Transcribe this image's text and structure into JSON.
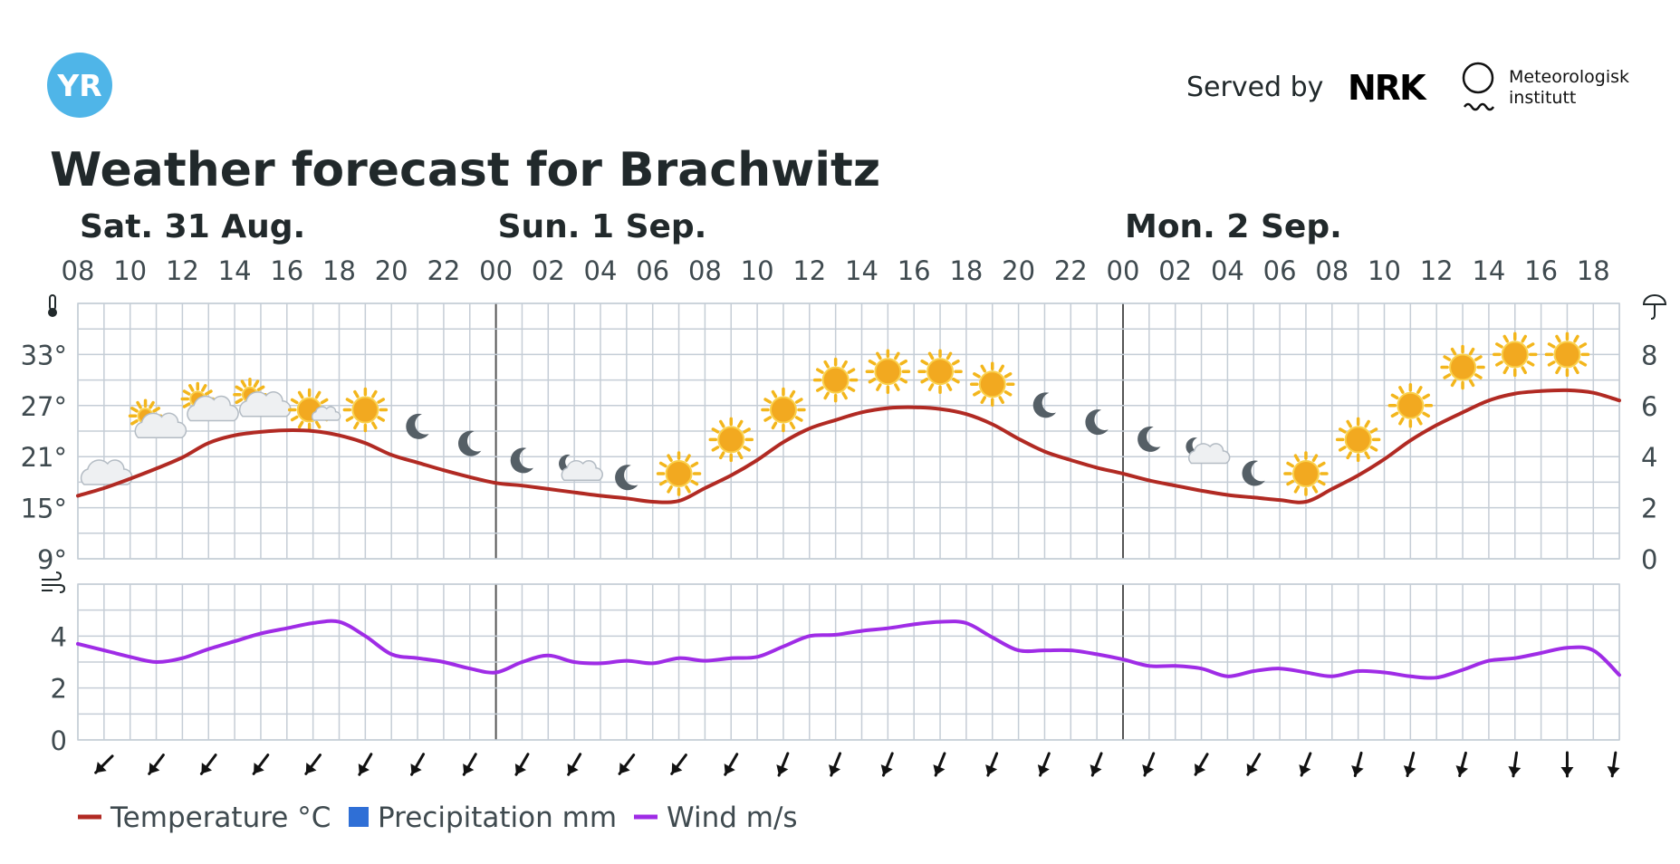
{
  "header": {
    "logo_text": "YR",
    "served_by_label": "Served by",
    "nrk_logo_text": "NRK",
    "met_line1": "Meteorologisk",
    "met_line2": "institutt",
    "title": "Weather forecast for Brachwitz"
  },
  "colors": {
    "temperature": "#b12a23",
    "precipitation": "#2f6fd6",
    "wind": "#9f2ce6",
    "grid": "#c5cdd6",
    "logo": "#4fb5e8"
  },
  "chart_data": {
    "type": "line",
    "days": [
      {
        "label": "Sat. 31 Aug.",
        "start_hour": 8
      },
      {
        "label": "Sun. 1 Sep.",
        "start_hour": 24
      },
      {
        "label": "Mon. 2 Sep.",
        "start_hour": 48
      }
    ],
    "x_ticks": [
      "08",
      "10",
      "12",
      "14",
      "16",
      "18",
      "20",
      "22",
      "00",
      "02",
      "04",
      "06",
      "08",
      "10",
      "12",
      "14",
      "16",
      "18",
      "20",
      "22",
      "00",
      "02",
      "04",
      "06",
      "08",
      "10",
      "12",
      "14",
      "16",
      "18"
    ],
    "x_range_hours": [
      8,
      67
    ],
    "temperature": {
      "axis_ticks": [
        "9°",
        "15°",
        "21°",
        "27°",
        "33°"
      ],
      "ylim": [
        9,
        39
      ],
      "icon": "thermometer-icon",
      "values": [
        [
          8,
          16.4
        ],
        [
          9,
          17.3
        ],
        [
          10,
          18.4
        ],
        [
          11,
          19.6
        ],
        [
          12,
          20.9
        ],
        [
          13,
          22.6
        ],
        [
          14,
          23.5
        ],
        [
          15,
          23.9
        ],
        [
          16,
          24.1
        ],
        [
          17,
          24.0
        ],
        [
          18,
          23.5
        ],
        [
          19,
          22.6
        ],
        [
          20,
          21.2
        ],
        [
          21,
          20.3
        ],
        [
          22,
          19.4
        ],
        [
          23,
          18.6
        ],
        [
          24,
          17.9
        ],
        [
          25,
          17.6
        ],
        [
          26,
          17.2
        ],
        [
          27,
          16.8
        ],
        [
          28,
          16.4
        ],
        [
          29,
          16.1
        ],
        [
          30,
          15.7
        ],
        [
          31,
          15.8
        ],
        [
          32,
          17.3
        ],
        [
          33,
          18.8
        ],
        [
          34,
          20.6
        ],
        [
          35,
          22.7
        ],
        [
          36,
          24.3
        ],
        [
          37,
          25.3
        ],
        [
          38,
          26.2
        ],
        [
          39,
          26.7
        ],
        [
          40,
          26.8
        ],
        [
          41,
          26.6
        ],
        [
          42,
          26.0
        ],
        [
          43,
          24.8
        ],
        [
          44,
          23.1
        ],
        [
          45,
          21.6
        ],
        [
          46,
          20.6
        ],
        [
          47,
          19.7
        ],
        [
          48,
          19.0
        ],
        [
          49,
          18.2
        ],
        [
          50,
          17.6
        ],
        [
          51,
          17.0
        ],
        [
          52,
          16.5
        ],
        [
          53,
          16.2
        ],
        [
          54,
          15.9
        ],
        [
          55,
          15.7
        ],
        [
          56,
          17.2
        ],
        [
          57,
          18.8
        ],
        [
          58,
          20.7
        ],
        [
          59,
          22.9
        ],
        [
          60,
          24.7
        ],
        [
          61,
          26.2
        ],
        [
          62,
          27.6
        ],
        [
          63,
          28.4
        ],
        [
          64,
          28.7
        ],
        [
          65,
          28.8
        ],
        [
          66,
          28.5
        ],
        [
          67,
          27.6
        ]
      ]
    },
    "precipitation": {
      "axis_ticks": [
        "0",
        "2",
        "4",
        "6",
        "8"
      ],
      "ylim": [
        0,
        10
      ],
      "icon": "umbrella-icon",
      "values": []
    },
    "wind": {
      "axis_ticks": [
        "0",
        "2",
        "4"
      ],
      "ylim": [
        0,
        6
      ],
      "icon": "wind-icon",
      "values": [
        [
          8,
          3.7
        ],
        [
          9,
          3.45
        ],
        [
          10,
          3.2
        ],
        [
          11,
          3.0
        ],
        [
          12,
          3.15
        ],
        [
          13,
          3.5
        ],
        [
          14,
          3.8
        ],
        [
          15,
          4.1
        ],
        [
          16,
          4.3
        ],
        [
          17,
          4.5
        ],
        [
          18,
          4.55
        ],
        [
          19,
          4.0
        ],
        [
          20,
          3.3
        ],
        [
          21,
          3.15
        ],
        [
          22,
          3.0
        ],
        [
          23,
          2.75
        ],
        [
          24,
          2.6
        ],
        [
          25,
          3.0
        ],
        [
          26,
          3.25
        ],
        [
          27,
          3.0
        ],
        [
          28,
          2.95
        ],
        [
          29,
          3.05
        ],
        [
          30,
          2.95
        ],
        [
          31,
          3.15
        ],
        [
          32,
          3.05
        ],
        [
          33,
          3.15
        ],
        [
          34,
          3.2
        ],
        [
          35,
          3.6
        ],
        [
          36,
          4.0
        ],
        [
          37,
          4.05
        ],
        [
          38,
          4.2
        ],
        [
          39,
          4.3
        ],
        [
          40,
          4.45
        ],
        [
          41,
          4.55
        ],
        [
          42,
          4.5
        ],
        [
          43,
          3.95
        ],
        [
          44,
          3.45
        ],
        [
          45,
          3.45
        ],
        [
          46,
          3.45
        ],
        [
          47,
          3.3
        ],
        [
          48,
          3.1
        ],
        [
          49,
          2.85
        ],
        [
          50,
          2.85
        ],
        [
          51,
          2.75
        ],
        [
          52,
          2.45
        ],
        [
          53,
          2.65
        ],
        [
          54,
          2.75
        ],
        [
          55,
          2.6
        ],
        [
          56,
          2.45
        ],
        [
          57,
          2.65
        ],
        [
          58,
          2.6
        ],
        [
          59,
          2.45
        ],
        [
          60,
          2.4
        ],
        [
          61,
          2.7
        ],
        [
          62,
          3.05
        ],
        [
          63,
          3.15
        ],
        [
          64,
          3.35
        ],
        [
          65,
          3.55
        ],
        [
          66,
          3.45
        ],
        [
          67,
          2.5
        ]
      ]
    },
    "weather_symbols": [
      {
        "hour": 9,
        "temp": 19.0,
        "symbol": "cloud"
      },
      {
        "hour": 11,
        "temp": 24.5,
        "symbol": "partly-cloudy-day"
      },
      {
        "hour": 13,
        "temp": 26.5,
        "symbol": "partly-cloudy-day"
      },
      {
        "hour": 15,
        "temp": 27.0,
        "symbol": "partly-cloudy-day"
      },
      {
        "hour": 17,
        "temp": 26.5,
        "symbol": "fair-day"
      },
      {
        "hour": 19,
        "temp": 26.5,
        "symbol": "sun"
      },
      {
        "hour": 21,
        "temp": 24.5,
        "symbol": "moon"
      },
      {
        "hour": 23,
        "temp": 22.5,
        "symbol": "moon"
      },
      {
        "hour": 25,
        "temp": 20.5,
        "symbol": "moon"
      },
      {
        "hour": 27,
        "temp": 19.5,
        "symbol": "partly-cloudy-night"
      },
      {
        "hour": 29,
        "temp": 18.5,
        "symbol": "moon"
      },
      {
        "hour": 31,
        "temp": 19.0,
        "symbol": "sun"
      },
      {
        "hour": 33,
        "temp": 23.0,
        "symbol": "sun"
      },
      {
        "hour": 35,
        "temp": 26.5,
        "symbol": "sun"
      },
      {
        "hour": 37,
        "temp": 30.0,
        "symbol": "sun"
      },
      {
        "hour": 39,
        "temp": 31.0,
        "symbol": "sun"
      },
      {
        "hour": 41,
        "temp": 31.0,
        "symbol": "sun"
      },
      {
        "hour": 43,
        "temp": 29.5,
        "symbol": "sun"
      },
      {
        "hour": 45,
        "temp": 27.0,
        "symbol": "moon"
      },
      {
        "hour": 47,
        "temp": 25.0,
        "symbol": "moon"
      },
      {
        "hour": 49,
        "temp": 23.0,
        "symbol": "moon"
      },
      {
        "hour": 51,
        "temp": 21.5,
        "symbol": "partly-cloudy-night"
      },
      {
        "hour": 53,
        "temp": 19.0,
        "symbol": "moon"
      },
      {
        "hour": 55,
        "temp": 19.0,
        "symbol": "sun"
      },
      {
        "hour": 57,
        "temp": 23.0,
        "symbol": "sun"
      },
      {
        "hour": 59,
        "temp": 27.0,
        "symbol": "sun"
      },
      {
        "hour": 61,
        "temp": 31.5,
        "symbol": "sun"
      },
      {
        "hour": 63,
        "temp": 33.0,
        "symbol": "sun"
      },
      {
        "hour": 65,
        "temp": 33.0,
        "symbol": "sun"
      }
    ],
    "wind_directions": [
      {
        "hour": 9,
        "angle": 225
      },
      {
        "hour": 11,
        "angle": 233
      },
      {
        "hour": 13,
        "angle": 233
      },
      {
        "hour": 15,
        "angle": 233
      },
      {
        "hour": 17,
        "angle": 233
      },
      {
        "hour": 19,
        "angle": 240
      },
      {
        "hour": 21,
        "angle": 240
      },
      {
        "hour": 23,
        "angle": 240
      },
      {
        "hour": 25,
        "angle": 240
      },
      {
        "hour": 27,
        "angle": 240
      },
      {
        "hour": 29,
        "angle": 233
      },
      {
        "hour": 31,
        "angle": 233
      },
      {
        "hour": 33,
        "angle": 240
      },
      {
        "hour": 35,
        "angle": 248
      },
      {
        "hour": 37,
        "angle": 248
      },
      {
        "hour": 39,
        "angle": 248
      },
      {
        "hour": 41,
        "angle": 248
      },
      {
        "hour": 43,
        "angle": 248
      },
      {
        "hour": 45,
        "angle": 248
      },
      {
        "hour": 47,
        "angle": 248
      },
      {
        "hour": 49,
        "angle": 248
      },
      {
        "hour": 51,
        "angle": 240
      },
      {
        "hour": 53,
        "angle": 240
      },
      {
        "hour": 55,
        "angle": 248
      },
      {
        "hour": 57,
        "angle": 255
      },
      {
        "hour": 59,
        "angle": 255
      },
      {
        "hour": 61,
        "angle": 255
      },
      {
        "hour": 63,
        "angle": 262
      },
      {
        "hour": 65,
        "angle": 270
      },
      {
        "hour": 67,
        "angle": 262
      }
    ],
    "legend": [
      {
        "label": "Temperature °C",
        "kind": "line",
        "color": "#b12a23"
      },
      {
        "label": "Precipitation mm",
        "kind": "square",
        "color": "#2f6fd6"
      },
      {
        "label": "Wind m/s",
        "kind": "line",
        "color": "#9f2ce6"
      }
    ]
  }
}
